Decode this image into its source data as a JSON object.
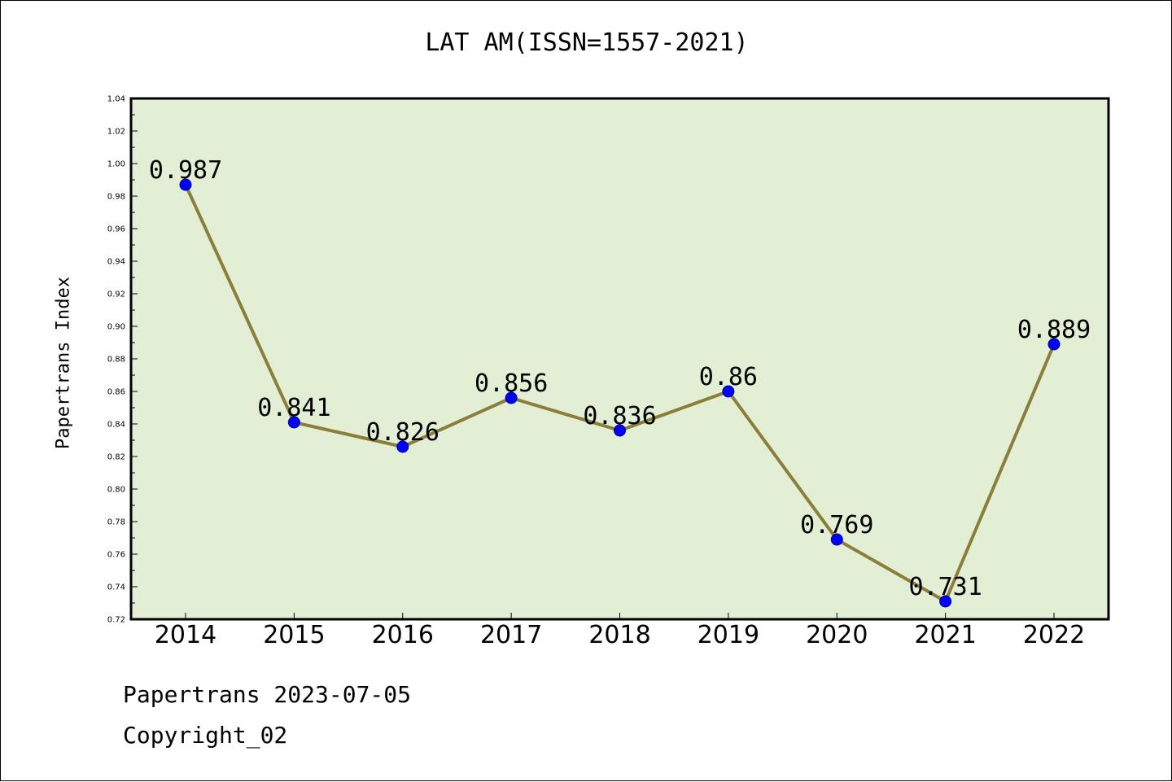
{
  "chart_data": {
    "type": "line",
    "title": "LAT AM(ISSN=1557-2021)",
    "ylabel": "Papertrans Index",
    "xlabel": "",
    "categories": [
      "2014",
      "2015",
      "2016",
      "2017",
      "2018",
      "2019",
      "2020",
      "2021",
      "2022"
    ],
    "values": [
      0.987,
      0.841,
      0.826,
      0.856,
      0.836,
      0.86,
      0.769,
      0.731,
      0.889
    ],
    "data_labels": [
      "0.987",
      "0.841",
      "0.826",
      "0.856",
      "0.836",
      "0.86",
      "0.769",
      "0.731",
      "0.889"
    ],
    "ylim": [
      0.72,
      1.04
    ],
    "yticks": [
      "0.72",
      "0.74",
      "0.76",
      "0.78",
      "0.80",
      "0.82",
      "0.84",
      "0.86",
      "0.88",
      "0.90",
      "0.92",
      "0.94",
      "0.96",
      "0.98",
      "1.00",
      "1.02",
      "1.04"
    ],
    "grid": false,
    "colors": {
      "line": "#8b7d3a",
      "marker": "#0000ff",
      "plot_background": "#e2efd5"
    }
  },
  "footer": {
    "line1": "Papertrans 2023-07-05",
    "line2": "Copyright_02"
  }
}
